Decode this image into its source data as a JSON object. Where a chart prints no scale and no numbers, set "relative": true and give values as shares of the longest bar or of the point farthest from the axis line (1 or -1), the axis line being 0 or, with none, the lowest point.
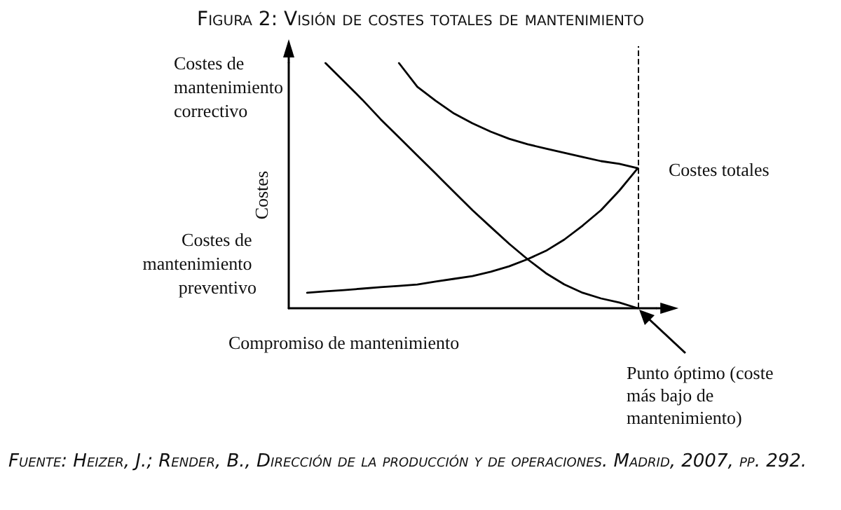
{
  "chart_data": {
    "type": "line",
    "title": "Figura 2: Visión de costes totales de mantenimiento",
    "xlabel": "Compromiso de mantenimiento",
    "ylabel": "Costes",
    "relative": true,
    "marker": "none",
    "line_style": "solid",
    "categories": [
      null,
      null,
      null,
      null,
      null,
      null,
      null,
      null,
      null,
      null,
      null,
      null,
      null,
      null,
      null,
      null,
      null,
      null,
      null,
      null,
      null
    ],
    "series": [
      {
        "name": "Costes de mantenimiento correctivo",
        "color": "#000000",
        "values": [
          null,
          null,
          1,
          0.926,
          0.851,
          0.771,
          0.697,
          0.623,
          0.549,
          0.474,
          0.4,
          0.331,
          0.263,
          0.2,
          0.143,
          0.097,
          0.063,
          0.04,
          0.023,
          0,
          null
        ]
      },
      {
        "name": "Costes totales",
        "color": "#000000",
        "values": [
          null,
          null,
          null,
          null,
          null,
          null,
          1,
          0.903,
          0.846,
          0.794,
          0.754,
          0.72,
          0.691,
          0.669,
          0.651,
          0.634,
          0.617,
          0.6,
          0.589,
          0.571,
          null
        ]
      },
      {
        "name": "Costes de mantenimiento preventivo",
        "color": "#000000",
        "values": [
          null,
          0.063,
          0.069,
          0.074,
          0.08,
          0.086,
          0.091,
          0.097,
          0.109,
          0.12,
          0.131,
          0.149,
          0.171,
          0.2,
          0.234,
          0.28,
          0.337,
          0.4,
          0.48,
          0.571,
          null
        ]
      }
    ],
    "annotations": [
      "Punto óptimo (coste más bajo de mantenimiento)",
      "Fuente: Heizer, J.; Render, B., Dirección de la producción y de operaciones. Madrid, 2007, pp. 292."
    ]
  }
}
